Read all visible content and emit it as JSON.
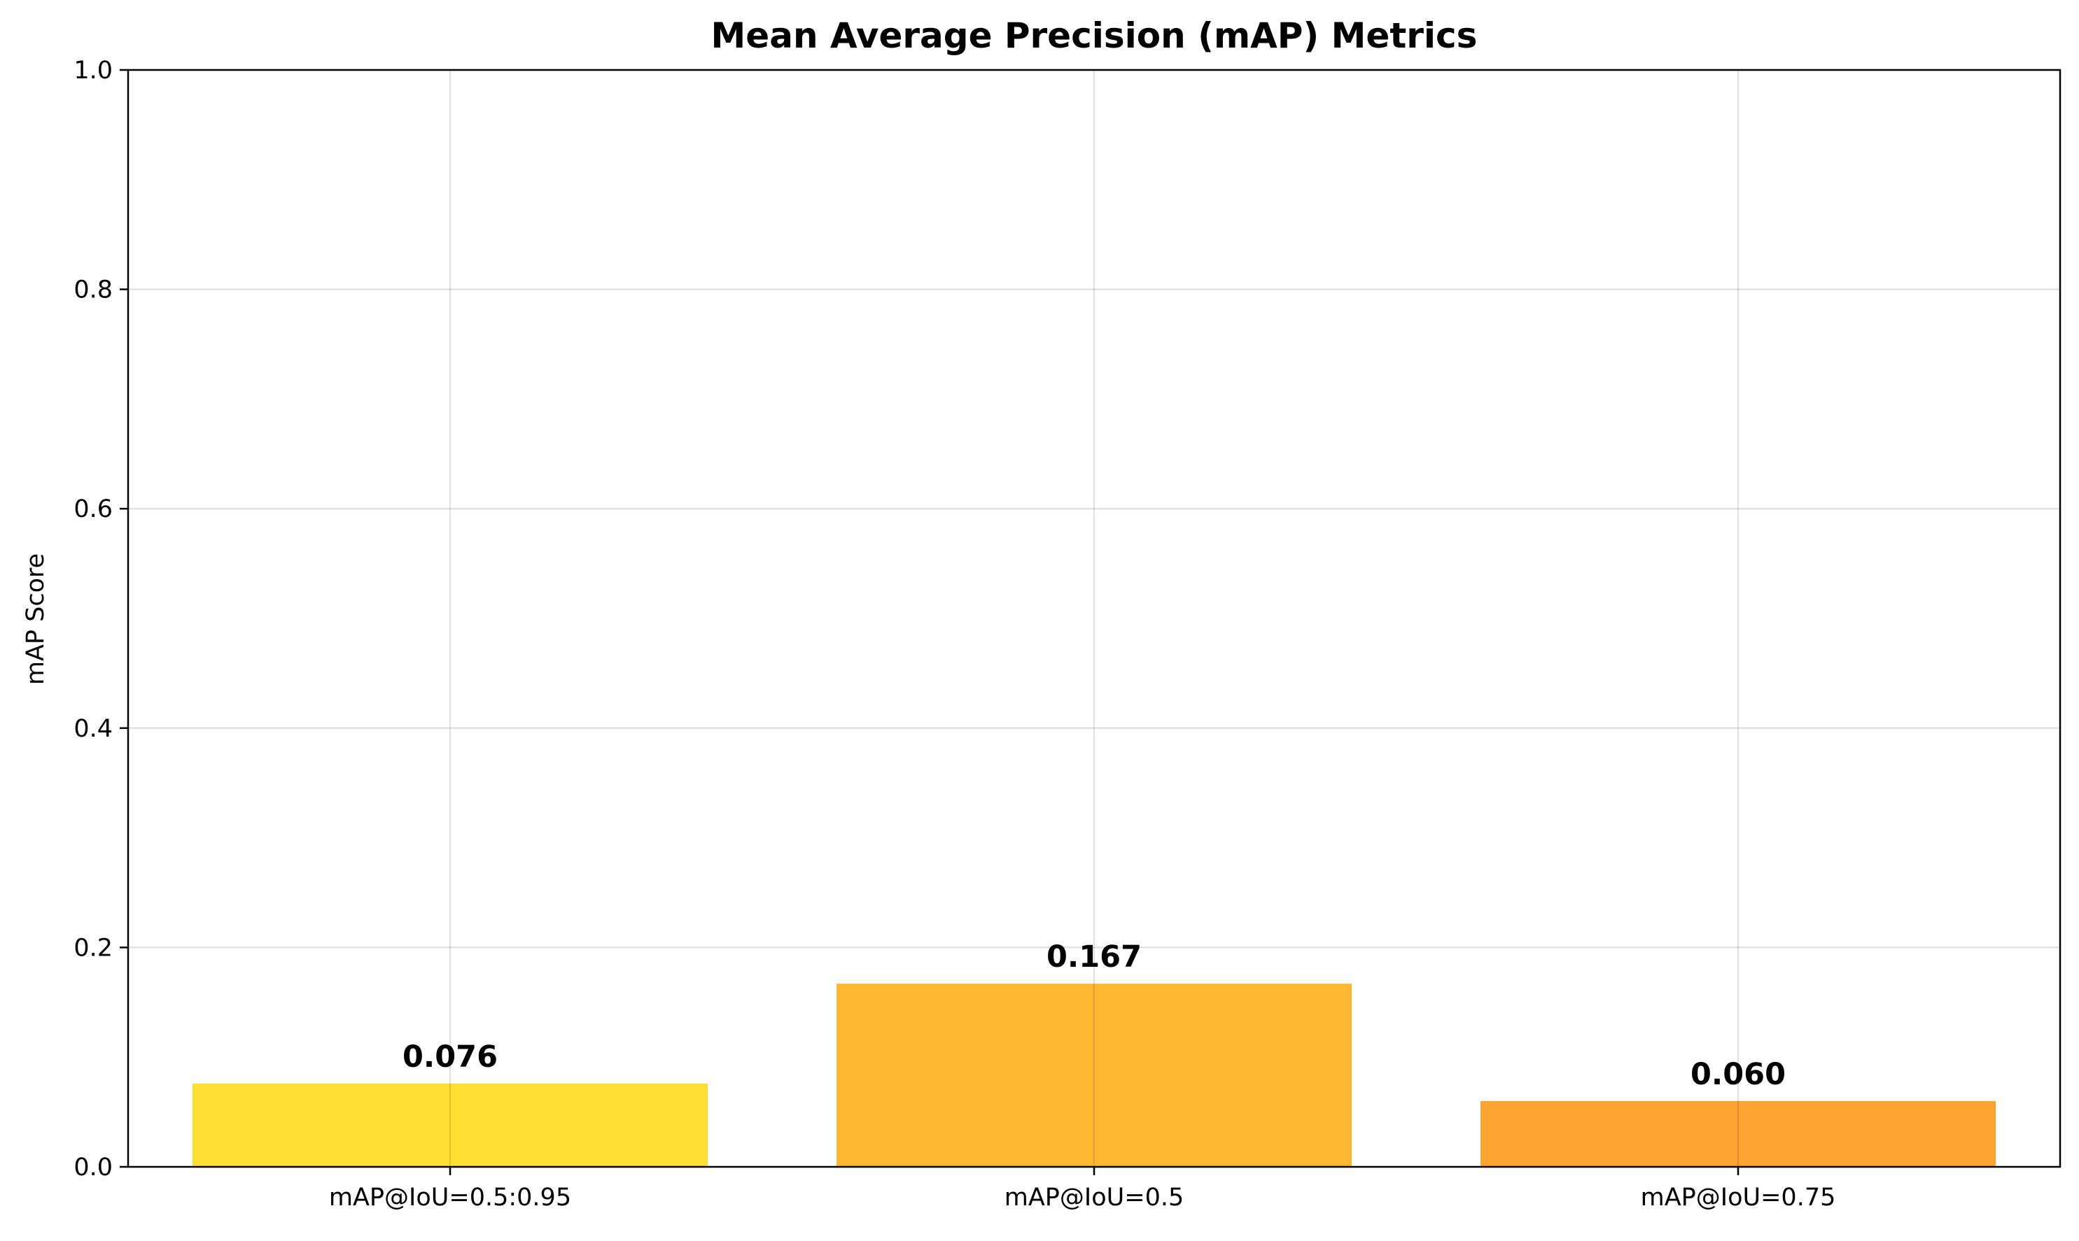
{
  "chart_data": {
    "type": "bar",
    "title": "Mean Average Precision (mAP) Metrics",
    "xlabel": "",
    "ylabel": "mAP Score",
    "categories": [
      "mAP@IoU=0.5:0.95",
      "mAP@IoU=0.5",
      "mAP@IoU=0.75"
    ],
    "values": [
      0.076,
      0.167,
      0.06
    ],
    "value_labels": [
      "0.076",
      "0.167",
      "0.060"
    ],
    "colors": [
      "#FFDF33",
      "#FFB733",
      "#FFA333"
    ],
    "ylim": [
      0,
      1.0
    ],
    "yticks": [
      0.0,
      0.2,
      0.4,
      0.6,
      0.8,
      1.0
    ],
    "ytick_labels": [
      "0.0",
      "0.2",
      "0.4",
      "0.6",
      "0.8",
      "1.0"
    ],
    "grid": true,
    "legend": "none"
  }
}
